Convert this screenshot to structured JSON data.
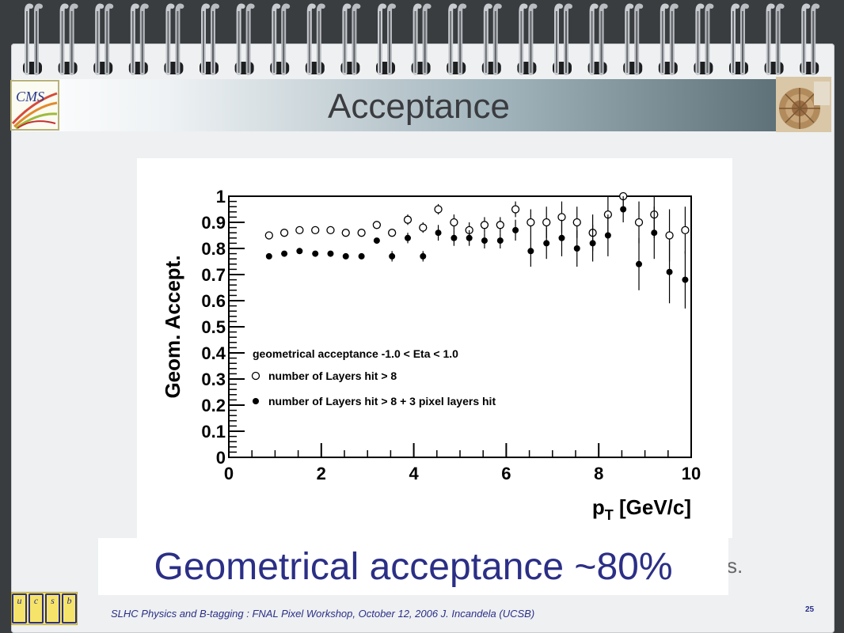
{
  "slide": {
    "title": "Acceptance",
    "overlay_text": "Geometrical acceptance ~80%",
    "hidden_trailing_text": "s.",
    "footer": "SLHC Physics and B-tagging : FNAL Pixel Workshop, October 12, 2006   J. Incandela (UCSB)",
    "page_number": "25",
    "bottom_logo_letters": [
      "u",
      "c",
      "s",
      "b"
    ],
    "left_logo_text": "CMS"
  },
  "chart_data": {
    "type": "scatter",
    "xlabel": "p",
    "xlabel_sub": "T",
    "xlabel_unit": " [GeV/c]",
    "ylabel": "Geom. Accept.",
    "xlim": [
      0,
      10
    ],
    "ylim": [
      0,
      1
    ],
    "x_ticks": [
      "0",
      "2",
      "4",
      "6",
      "8",
      "10"
    ],
    "y_ticks": [
      "0",
      "0.1",
      "0.2",
      "0.3",
      "0.4",
      "0.5",
      "0.6",
      "0.7",
      "0.8",
      "0.9",
      "1"
    ],
    "legend_title": "geometrical acceptance -1.0 < Eta < 1.0",
    "legend_placement": "center-left",
    "series": [
      {
        "name": "number of Layers hit > 8",
        "marker": "open-circle",
        "x": [
          0.87,
          1.2,
          1.53,
          1.87,
          2.2,
          2.53,
          2.87,
          3.2,
          3.53,
          3.87,
          4.2,
          4.53,
          4.87,
          5.2,
          5.53,
          5.87,
          6.2,
          6.53,
          6.87,
          7.2,
          7.53,
          7.87,
          8.2,
          8.53,
          8.87,
          9.2,
          9.53,
          9.87
        ],
        "y": [
          0.85,
          0.86,
          0.87,
          0.87,
          0.87,
          0.86,
          0.86,
          0.89,
          0.86,
          0.91,
          0.88,
          0.95,
          0.9,
          0.87,
          0.89,
          0.89,
          0.95,
          0.9,
          0.9,
          0.92,
          0.9,
          0.86,
          0.93,
          1.0,
          0.9,
          0.93,
          0.85,
          0.87
        ],
        "err": [
          0,
          0,
          0,
          0,
          0,
          0,
          0,
          0,
          0,
          0.02,
          0.02,
          0.02,
          0.03,
          0.03,
          0.03,
          0.03,
          0.03,
          0.05,
          0.06,
          0.06,
          0.06,
          0.07,
          0.07,
          0.05,
          0.08,
          0.09,
          0.1,
          0.09
        ]
      },
      {
        "name": "number of Layers hit > 8 + 3 pixel layers hit",
        "marker": "filled-circle",
        "x": [
          0.87,
          1.2,
          1.53,
          1.87,
          2.2,
          2.53,
          2.87,
          3.2,
          3.53,
          3.87,
          4.2,
          4.53,
          4.87,
          5.2,
          5.53,
          5.87,
          6.2,
          6.53,
          6.87,
          7.2,
          7.53,
          7.87,
          8.2,
          8.53,
          8.87,
          9.2,
          9.53,
          9.87
        ],
        "y": [
          0.77,
          0.78,
          0.79,
          0.78,
          0.78,
          0.77,
          0.77,
          0.83,
          0.77,
          0.84,
          0.77,
          0.86,
          0.84,
          0.84,
          0.83,
          0.83,
          0.87,
          0.79,
          0.82,
          0.84,
          0.8,
          0.82,
          0.85,
          0.95,
          0.74,
          0.86,
          0.71,
          0.68
        ],
        "err": [
          0,
          0,
          0,
          0,
          0,
          0,
          0,
          0,
          0.02,
          0.02,
          0.02,
          0.03,
          0.03,
          0.03,
          0.03,
          0.03,
          0.04,
          0.06,
          0.06,
          0.07,
          0.07,
          0.07,
          0.08,
          0.05,
          0.1,
          0.1,
          0.12,
          0.11
        ]
      }
    ]
  }
}
